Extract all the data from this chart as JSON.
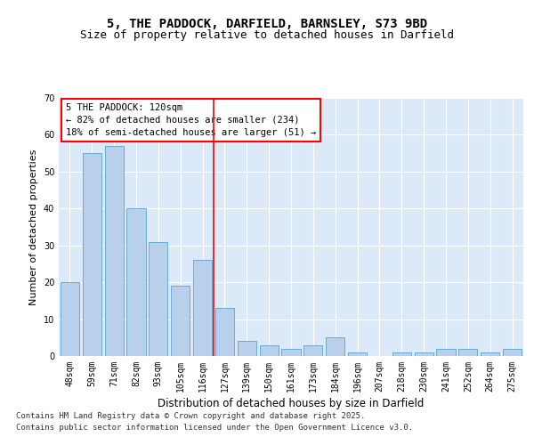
{
  "title": "5, THE PADDOCK, DARFIELD, BARNSLEY, S73 9BD",
  "subtitle": "Size of property relative to detached houses in Darfield",
  "xlabel": "Distribution of detached houses by size in Darfield",
  "ylabel": "Number of detached properties",
  "categories": [
    "48sqm",
    "59sqm",
    "71sqm",
    "82sqm",
    "93sqm",
    "105sqm",
    "116sqm",
    "127sqm",
    "139sqm",
    "150sqm",
    "161sqm",
    "173sqm",
    "184sqm",
    "196sqm",
    "207sqm",
    "218sqm",
    "230sqm",
    "241sqm",
    "252sqm",
    "264sqm",
    "275sqm"
  ],
  "values": [
    20,
    55,
    57,
    40,
    31,
    19,
    26,
    13,
    4,
    3,
    2,
    3,
    5,
    1,
    0,
    1,
    1,
    2,
    2,
    1,
    2
  ],
  "bar_color": "#b8d0ea",
  "bar_edge_color": "#6aaad4",
  "vline_color": "red",
  "ylim": [
    0,
    70
  ],
  "yticks": [
    0,
    10,
    20,
    30,
    40,
    50,
    60,
    70
  ],
  "annotation_title": "5 THE PADDOCK: 120sqm",
  "annotation_line1": "← 82% of detached houses are smaller (234)",
  "annotation_line2": "18% of semi-detached houses are larger (51) →",
  "footer_line1": "Contains HM Land Registry data © Crown copyright and database right 2025.",
  "footer_line2": "Contains public sector information licensed under the Open Government Licence v3.0.",
  "bg_color": "#dce9f8",
  "fig_bg_color": "#ffffff",
  "title_fontsize": 10,
  "subtitle_fontsize": 9,
  "xlabel_fontsize": 8.5,
  "ylabel_fontsize": 8,
  "tick_fontsize": 7,
  "annotation_fontsize": 7.5,
  "footer_fontsize": 6.5
}
